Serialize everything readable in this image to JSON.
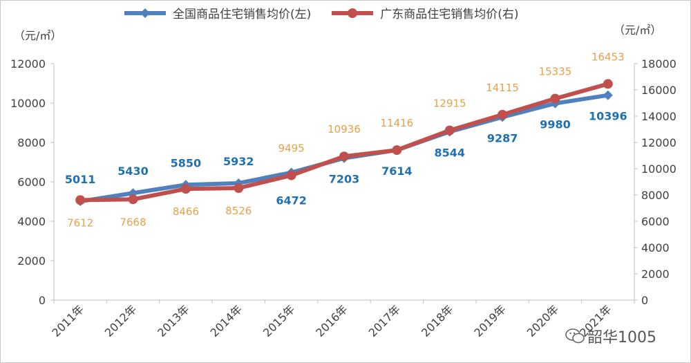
{
  "legend": {
    "series1_label": "全国商品住宅销售均价(左)",
    "series2_label": "广东商品住宅销售均价(右)"
  },
  "units": {
    "left": "（元/㎡）",
    "right": "（元/㎡）"
  },
  "watermark": {
    "text": "韶华1005",
    "icon": "wechat-icon"
  },
  "chart_data": {
    "type": "line",
    "categories": [
      "2011年",
      "2012年",
      "2013年",
      "2014年",
      "2015年",
      "2016年",
      "2017年",
      "2018年",
      "2019年",
      "2020年",
      "2021年"
    ],
    "series": [
      {
        "name": "全国商品住宅销售均价(左)",
        "axis": "left",
        "color": "#4f81bd",
        "label_color": "#1f6fb2",
        "marker": "diamond",
        "values": [
          5011,
          5430,
          5850,
          5932,
          6472,
          7203,
          7614,
          8544,
          9287,
          9980,
          10396
        ]
      },
      {
        "name": "广东商品住宅销售均价(右)",
        "axis": "right",
        "color": "#c0504d",
        "label_color": "#e8a04a",
        "marker": "circle",
        "values": [
          7612,
          7668,
          8466,
          8526,
          9495,
          10936,
          11416,
          12915,
          14115,
          15335,
          16453
        ]
      }
    ],
    "y_left": {
      "min": 0,
      "max": 12000,
      "ticks": [
        0,
        2000,
        4000,
        6000,
        8000,
        10000,
        12000
      ]
    },
    "y_right": {
      "min": 0,
      "max": 18000,
      "ticks": [
        0,
        2000,
        4000,
        6000,
        8000,
        10000,
        12000,
        14000,
        16000,
        18000
      ]
    }
  }
}
